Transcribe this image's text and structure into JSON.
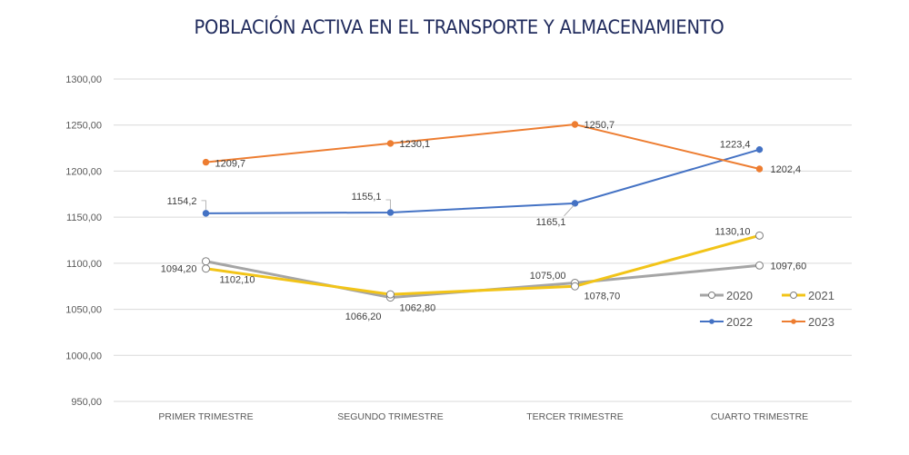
{
  "chart_data": {
    "type": "line",
    "title": "POBLACIÓN ACTIVA EN EL TRANSPORTE Y ALMACENAMIENTO",
    "xlabel": "",
    "ylabel": "",
    "categories": [
      "PRIMER TRIMESTRE",
      "SEGUNDO TRIMESTRE",
      "TERCER TRIMESTRE",
      "CUARTO TRIMESTRE"
    ],
    "ylim": [
      950,
      1300
    ],
    "yticks": [
      950,
      1000,
      1050,
      1100,
      1150,
      1200,
      1250,
      1300
    ],
    "ytick_labels": [
      "950,00",
      "1000,00",
      "1050,00",
      "1100,00",
      "1150,00",
      "1200,00",
      "1250,00",
      "1300,00"
    ],
    "grid": true,
    "legend_position": "bottom-right",
    "series": [
      {
        "name": "2020",
        "color": "#a5a5a5",
        "marker": "hollow-circle",
        "values": [
          1102.1,
          1062.8,
          1078.7,
          1097.6
        ],
        "labels": [
          "1102,10",
          "1062,80",
          "1078,70",
          "1097,60"
        ]
      },
      {
        "name": "2021",
        "color": "#f2c418",
        "marker": "hollow-circle",
        "values": [
          1094.2,
          1066.2,
          1075.0,
          1130.1
        ],
        "labels": [
          "1094,20",
          "1066,20",
          "1075,00",
          "1130,10"
        ]
      },
      {
        "name": "2022",
        "color": "#4472c4",
        "marker": "filled-circle",
        "values": [
          1154.2,
          1155.1,
          1165.1,
          1223.4
        ],
        "labels": [
          "1154,2",
          "1155,1",
          "1165,1",
          "1223,4"
        ]
      },
      {
        "name": "2023",
        "color": "#ed7d31",
        "marker": "filled-circle",
        "values": [
          1209.7,
          1230.1,
          1250.7,
          1202.4
        ],
        "labels": [
          "1209,7",
          "1230,1",
          "1250,7",
          "1202,4"
        ]
      }
    ]
  }
}
